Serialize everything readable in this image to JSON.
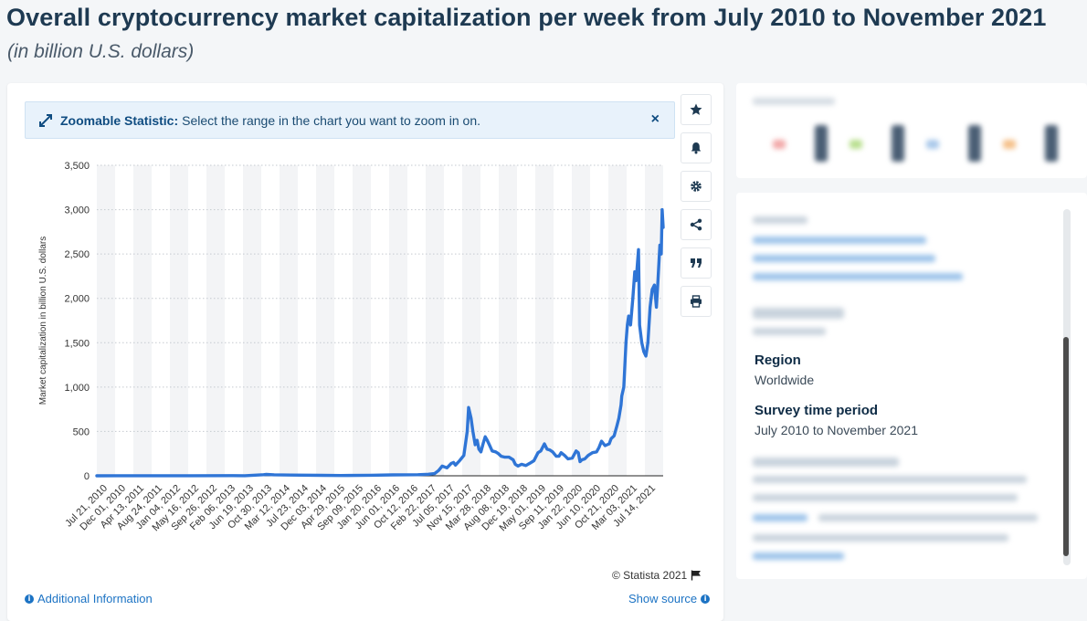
{
  "page": {
    "title": "Overall cryptocurrency market capitalization per week from July 2010 to November 2021",
    "subtitle": "(in billion U.S. dollars)"
  },
  "zoom_banner": {
    "label": "Zoomable Statistic:",
    "text": "Select the range in the chart you want to zoom in on.",
    "close": "×"
  },
  "toolbar": {
    "icons": [
      "star-icon",
      "bell-icon",
      "gear-icon",
      "share-icon",
      "quote-icon",
      "print-icon"
    ]
  },
  "footer": {
    "copyright": "© Statista 2021",
    "additional_info": "Additional Information",
    "show_source": "Show source"
  },
  "details": {
    "region_label": "Region",
    "region_value": "Worldwide",
    "period_label": "Survey time period",
    "period_value": "July 2010 to November 2021"
  },
  "colors": {
    "line": "#2f75d6",
    "link": "#1c73c4",
    "title": "#1e3a52"
  },
  "chart_data": {
    "type": "line",
    "title": "Overall cryptocurrency market capitalization per week from July 2010 to November 2021",
    "subtitle": "(in billion U.S. dollars)",
    "xlabel": "",
    "ylabel": "Market capitalization in billion U.S. dollars",
    "ylim": [
      0,
      3500
    ],
    "yticks": [
      0,
      500,
      1000,
      1500,
      2000,
      2500,
      3000,
      3500
    ],
    "ytick_labels": [
      "0",
      "500",
      "1,000",
      "1,500",
      "2,000",
      "2,500",
      "3,000",
      "3,500"
    ],
    "x_start": "2010-07-18",
    "x_end": "2021-11-08",
    "xtick_labels": [
      "Jul 21, 2010",
      "Dec 01, 2010",
      "Apr 13, 2011",
      "Aug 24, 2011",
      "Jan 04, 2012",
      "May 16, 2012",
      "Sep 26, 2012",
      "Feb 06, 2013",
      "Jun 19, 2013",
      "Oct 30, 2013",
      "Mar 12, 2014",
      "Jul 23, 2014",
      "Dec 03, 2014",
      "Apr 29, 2015",
      "Sep 09, 2015",
      "Jan 20, 2016",
      "Jun 01, 2016",
      "Oct 12, 2016",
      "Feb 22, 2017",
      "Jul 05, 2017",
      "Nov 15, 2017",
      "Mar 28, 2018",
      "Aug 08, 2018",
      "Dec 19, 2018",
      "May 01, 2019",
      "Sep 11, 2019",
      "Jan 22, 2020",
      "Jun 10, 2020",
      "Oct 21, 2020",
      "Mar 03, 2021",
      "Jul 14, 2021"
    ],
    "grid": true,
    "legend": "none",
    "series": [
      {
        "x": [
          "2010-07-18",
          "2011-06-01",
          "2012-06-01",
          "2013-04-01",
          "2013-07-01",
          "2013-11-15",
          "2013-12-05",
          "2014-02-01",
          "2014-06-01",
          "2015-01-15",
          "2015-06-01",
          "2016-01-01",
          "2016-06-15",
          "2016-12-15",
          "2017-03-01",
          "2017-04-15",
          "2017-05-15",
          "2017-06-10",
          "2017-07-15",
          "2017-08-15",
          "2017-09-01",
          "2017-09-15",
          "2017-10-15",
          "2017-11-15",
          "2017-12-10",
          "2017-12-20",
          "2018-01-07",
          "2018-01-20",
          "2018-02-06",
          "2018-02-20",
          "2018-03-05",
          "2018-03-20",
          "2018-04-06",
          "2018-04-20",
          "2018-05-05",
          "2018-05-20",
          "2018-06-10",
          "2018-07-05",
          "2018-07-25",
          "2018-08-15",
          "2018-09-10",
          "2018-10-10",
          "2018-11-10",
          "2018-11-25",
          "2018-12-15",
          "2019-01-10",
          "2019-02-10",
          "2019-03-10",
          "2019-04-10",
          "2019-05-10",
          "2019-05-30",
          "2019-06-26",
          "2019-07-15",
          "2019-08-05",
          "2019-08-25",
          "2019-09-20",
          "2019-10-10",
          "2019-10-26",
          "2019-11-20",
          "2019-12-15",
          "2020-01-15",
          "2020-02-12",
          "2020-02-28",
          "2020-03-12",
          "2020-03-25",
          "2020-04-15",
          "2020-05-10",
          "2020-06-10",
          "2020-07-10",
          "2020-07-28",
          "2020-08-15",
          "2020-09-10",
          "2020-10-10",
          "2020-10-25",
          "2020-11-15",
          "2020-12-05",
          "2020-12-20",
          "2021-01-05",
          "2021-01-10",
          "2021-01-25",
          "2021-02-10",
          "2021-02-20",
          "2021-03-01",
          "2021-03-15",
          "2021-04-01",
          "2021-04-15",
          "2021-04-25",
          "2021-05-12",
          "2021-05-20",
          "2021-06-05",
          "2021-06-20",
          "2021-07-05",
          "2021-07-20",
          "2021-08-05",
          "2021-08-20",
          "2021-09-05",
          "2021-09-20",
          "2021-10-01",
          "2021-10-15",
          "2021-10-25",
          "2021-11-01",
          "2021-11-08"
        ],
        "y": [
          0,
          1,
          1,
          2,
          1,
          12,
          15,
          11,
          8,
          5,
          3,
          6,
          10,
          12,
          18,
          25,
          60,
          110,
          90,
          140,
          150,
          120,
          170,
          230,
          500,
          770,
          650,
          500,
          350,
          400,
          300,
          270,
          370,
          440,
          400,
          350,
          280,
          270,
          250,
          220,
          210,
          210,
          180,
          130,
          110,
          130,
          115,
          140,
          170,
          260,
          280,
          360,
          300,
          290,
          270,
          220,
          220,
          260,
          230,
          190,
          200,
          280,
          260,
          160,
          180,
          190,
          230,
          260,
          270,
          320,
          390,
          340,
          360,
          420,
          450,
          560,
          650,
          800,
          900,
          1000,
          1500,
          1700,
          1800,
          1700,
          2000,
          2300,
          2200,
          2550,
          1700,
          1500,
          1400,
          1350,
          1500,
          1900,
          2100,
          2150,
          1900,
          2200,
          2600,
          2500,
          3000,
          2800
        ]
      }
    ]
  }
}
